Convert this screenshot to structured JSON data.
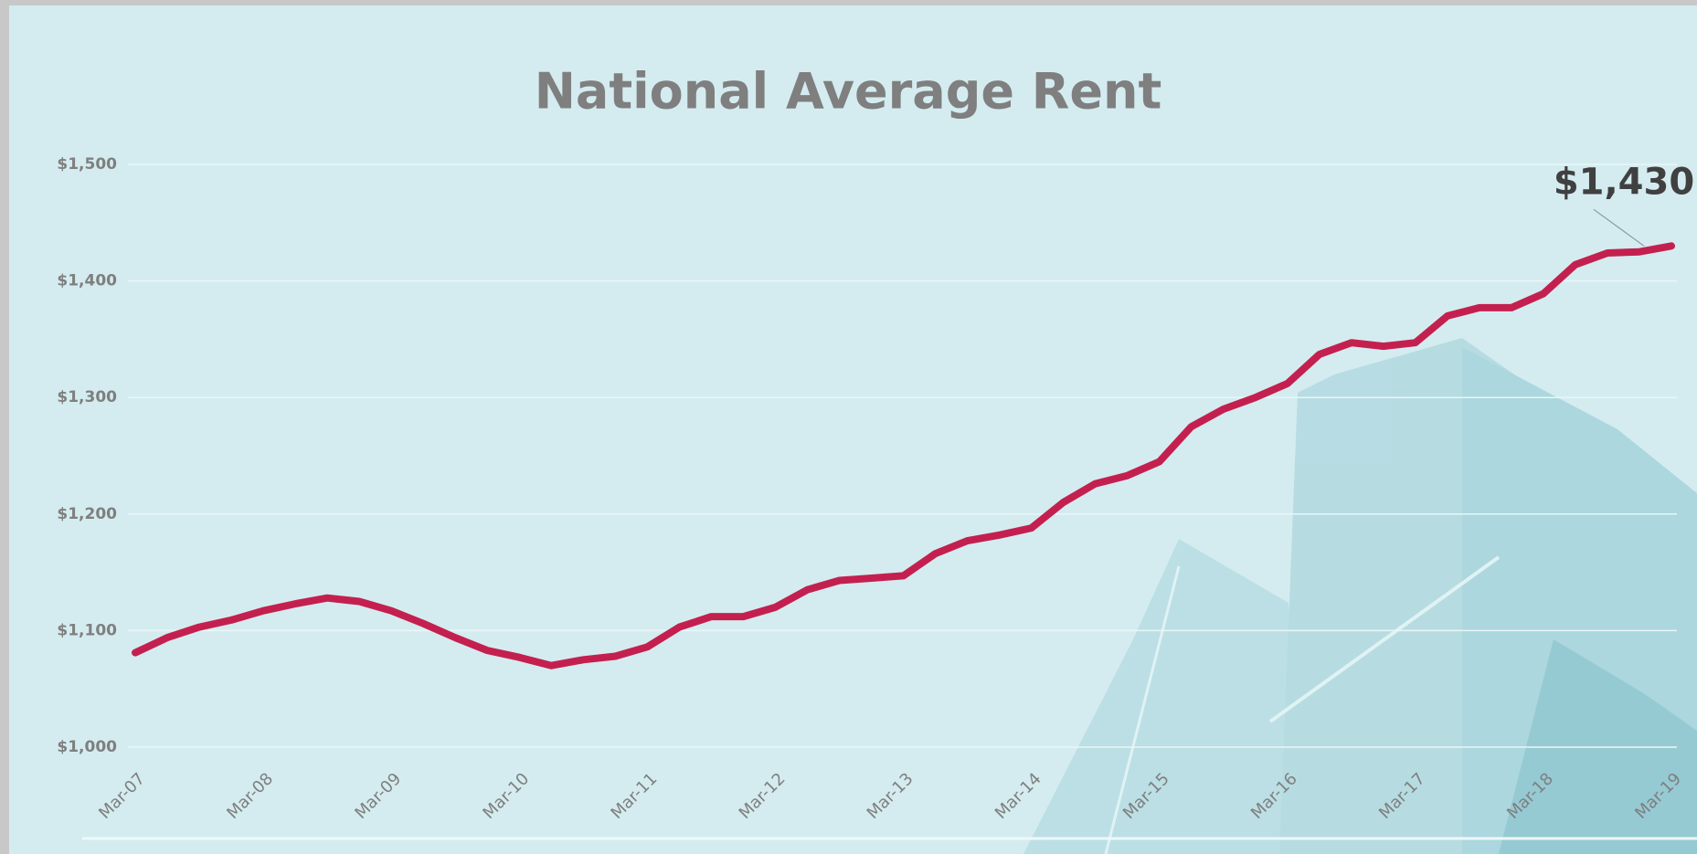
{
  "chart_data": {
    "type": "line",
    "title": "National Average Rent",
    "categories": [
      "Mar-07",
      null,
      null,
      null,
      "Mar-08",
      null,
      null,
      null,
      "Mar-09",
      null,
      null,
      null,
      "Mar-10",
      null,
      null,
      null,
      "Mar-11",
      null,
      null,
      null,
      "Mar-12",
      null,
      null,
      null,
      "Mar-13",
      null,
      null,
      null,
      "Mar-14",
      null,
      null,
      null,
      "Mar-15",
      null,
      null,
      null,
      "Mar-16",
      null,
      null,
      null,
      "Mar-17",
      null,
      null,
      null,
      "Mar-18",
      null,
      null,
      null,
      "Mar-19"
    ],
    "values": [
      1081,
      1094,
      1103,
      1109,
      1117,
      1123,
      1128,
      1125,
      1117,
      1106,
      1094,
      1083,
      1077,
      1070,
      1075,
      1078,
      1086,
      1103,
      1112,
      1112,
      1120,
      1135,
      1143,
      1145,
      1147,
      1166,
      1177,
      1182,
      1188,
      1210,
      1226,
      1233,
      1245,
      1275,
      1290,
      1300,
      1312,
      1337,
      1347,
      1344,
      1347,
      1370,
      1377,
      1377,
      1389,
      1414,
      1424,
      1425,
      1430
    ],
    "value_labels": [
      null,
      null,
      null,
      null,
      null,
      null,
      null,
      null,
      null,
      null,
      null,
      null,
      null,
      null,
      null,
      null,
      null,
      null,
      null,
      null,
      null,
      null,
      null,
      null,
      null,
      null,
      null,
      null,
      null,
      null,
      null,
      null,
      null,
      null,
      null,
      null,
      null,
      null,
      null,
      null,
      null,
      null,
      null,
      null,
      null,
      null,
      null,
      null,
      "$1,430"
    ],
    "color": "#c4204f",
    "ylim": [
      1000,
      1500
    ],
    "yticks": [
      {
        "value": 1000,
        "label": "$1,000"
      },
      {
        "value": 1100,
        "label": "$1,100"
      },
      {
        "value": 1200,
        "label": "$1,200"
      },
      {
        "value": 1300,
        "label": "$1,300"
      },
      {
        "value": 1400,
        "label": "$1,400"
      },
      {
        "value": 1500,
        "label": "$1,500"
      }
    ],
    "grid": true
  }
}
